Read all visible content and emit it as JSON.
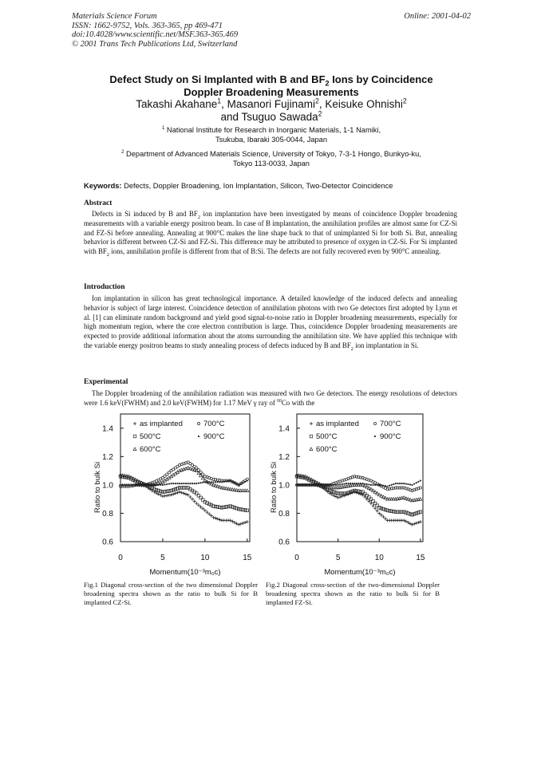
{
  "header": {
    "journal": "Materials Science Forum",
    "issn": "ISSN: 1662-9752, Vols. 363-365, pp 469-471",
    "doi": "doi:10.4028/www.scientific.net/MSF.363-365.469",
    "copyright": "© 2001 Trans Tech Publications Ltd, Switzerland",
    "online": "Online: 2001-04-02"
  },
  "title_line1": "Defect Study on Si Implanted with B and BF",
  "title_sub": "2",
  "title_line1_end": " Ions by Coincidence",
  "title_line2": "Doppler Broadening Measurements",
  "authors": {
    "a1": "Takashi Akahane",
    "a1_sup": "1",
    "a2": ", Masanori Fujinami",
    "a2_sup": "2",
    "a3": ", Keisuke Ohnishi",
    "a3_sup": "2",
    "a4": "and Tsuguo Sawada",
    "a4_sup": "2"
  },
  "affiliations": [
    {
      "sup": "1",
      "line1": " National Institute for Research in Inorganic Materials, 1-1 Namiki,",
      "line2": "Tsukuba, Ibaraki 305-0044, Japan"
    },
    {
      "sup": "2",
      "line1": " Department of Advanced Materials Science, University of Tokyo, 7-3-1 Hongo, Bunkyo-ku,",
      "line2": "Tokyo 113-0033, Japan"
    }
  ],
  "keywords_label": "Keywords:",
  "keywords": " Defects, Doppler Broadening, Ion Implantation, Silicon, Two-Detector Coincidence",
  "abstract": {
    "heading": "Abstract",
    "p1": "Defects in Si induced by B and BF",
    "p1_sub": "2",
    "p2": " ion implantation have been investigated by means of coincidence Doppler broadening measurements with a variable energy positron beam. In case of B implantation, the annihilation profiles are almost same for CZ-Si and FZ-Si before annealing. Annealing at 900°C makes the line shape back to that of unimplanted Si for both Si. But, annealing behavior is different between CZ-Si and FZ-Si. This difference may be attributed to presence of oxygen in CZ-Si. For Si implanted with BF",
    "p2_sub": "2",
    "p3": " ions, annihilation profile is different from that of B:Si. The defects are not fully recovered even by 900°C annealing."
  },
  "introduction": {
    "heading": "Introduction",
    "p1": "Ion implantation in silicon has great technological importance. A detailed knowledge of the induced defects and annealing behavior is subject of large interest. Coincidence detection of annihilation photons with two Ge detectors first adopted by Lynn et al. [1] can eliminate random background and yield good signal-to-noise ratio in Doppler broadening measurements, especially for high momentum region, where the core electron contribution is large. Thus, coincidence Doppler broadening measurements are expected to provide additional information about the atoms surrounding the annihilation site. We have applied this technique with the variable energy positron beams to study annealing process of defects induced by B and BF",
    "p1_sub": "2",
    "p2": " ion implantation in Si."
  },
  "experimental": {
    "heading": "Experimental",
    "p1": "The Doppler broadening of the annihilation radiation was measured with two Ge detectors. The energy resolutions of detectors were 1.6 keV(FWHM) and 2.0 keV(FWHM) for 1.17 MeV γ ray of ",
    "p1_sup": "60",
    "p2": "Co with the"
  },
  "captions": {
    "fig1": "Fig.1  Diagonal cross-section of the two dimensional Doppler broadening spectra shown as the ratio to bulk Si for B implanted CZ-Si.",
    "fig2": "Fig.2  Diagonal cross-section of the two-dimensional Doppler broadening spectra shown as the ratio to bulk Si for B implanted FZ-Si."
  },
  "chart_data": [
    {
      "type": "scatter",
      "xlabel": "Momentum(10⁻³m₀c)",
      "ylabel": "Ratio to bulk Si",
      "xlim": [
        0,
        15.3
      ],
      "ylim": [
        0.6,
        1.5
      ],
      "xticks": [
        "0",
        "5",
        "10",
        "15"
      ],
      "yticks": [
        "0.6",
        "0.8",
        "1.0",
        "1.2",
        "1.4"
      ],
      "grid": false,
      "legend_position": "top-left",
      "x": [
        0,
        1,
        2,
        3,
        4,
        5,
        6,
        7,
        8,
        9,
        10,
        11,
        12,
        13,
        14,
        15
      ],
      "series": [
        {
          "name": "as implanted",
          "marker": "plus",
          "values": [
            1.0,
            1.0,
            1.0,
            0.99,
            0.95,
            0.92,
            0.93,
            0.95,
            0.93,
            0.87,
            0.82,
            0.77,
            0.75,
            0.75,
            0.72,
            0.74
          ]
        },
        {
          "name": "500°C",
          "marker": "square",
          "values": [
            1.06,
            1.05,
            1.02,
            1.0,
            0.97,
            0.95,
            0.96,
            0.98,
            0.98,
            0.94,
            0.88,
            0.85,
            0.84,
            0.85,
            0.83,
            0.82
          ]
        },
        {
          "name": "600°C",
          "marker": "triangle",
          "values": [
            1.07,
            1.06,
            1.03,
            1.0,
            1.0,
            1.02,
            1.06,
            1.1,
            1.12,
            1.1,
            1.03,
            1.0,
            0.98,
            0.97,
            0.96,
            0.96
          ]
        },
        {
          "name": "700°C",
          "marker": "circle",
          "values": [
            0.99,
            0.99,
            1.0,
            1.0,
            1.02,
            1.05,
            1.1,
            1.14,
            1.16,
            1.12,
            1.06,
            1.04,
            1.03,
            1.03,
            1.0,
            1.04
          ]
        },
        {
          "name": "900°C",
          "marker": "dot",
          "values": [
            1.0,
            1.0,
            1.0,
            1.0,
            1.0,
            1.0,
            1.01,
            1.01,
            1.01,
            1.01,
            1.02,
            1.02,
            1.02,
            1.03,
            1.0,
            1.03
          ]
        }
      ]
    },
    {
      "type": "scatter",
      "xlabel": "Momentum(10⁻³m₀c)",
      "ylabel": "Ratio to bulk Si",
      "xlim": [
        0,
        15.3
      ],
      "ylim": [
        0.6,
        1.5
      ],
      "xticks": [
        "0",
        "5",
        "10",
        "15"
      ],
      "yticks": [
        "0.6",
        "0.8",
        "1.0",
        "1.2",
        "1.4"
      ],
      "grid": false,
      "legend_position": "top-left",
      "x": [
        0,
        1,
        2,
        3,
        4,
        5,
        6,
        7,
        8,
        9,
        10,
        11,
        12,
        13,
        14,
        15
      ],
      "series": [
        {
          "name": "as implanted",
          "marker": "plus",
          "values": [
            1.0,
            1.0,
            1.0,
            0.99,
            0.94,
            0.91,
            0.93,
            0.95,
            0.93,
            0.87,
            0.8,
            0.75,
            0.75,
            0.75,
            0.72,
            0.74
          ]
        },
        {
          "name": "500°C",
          "marker": "square",
          "values": [
            1.06,
            1.05,
            1.02,
            0.99,
            0.96,
            0.94,
            0.94,
            0.96,
            0.95,
            0.9,
            0.84,
            0.82,
            0.81,
            0.81,
            0.79,
            0.81
          ]
        },
        {
          "name": "600°C",
          "marker": "triangle",
          "values": [
            1.07,
            1.06,
            1.03,
            1.0,
            0.98,
            0.98,
            0.99,
            1.0,
            1.0,
            0.97,
            0.93,
            0.9,
            0.9,
            0.91,
            0.89,
            0.9
          ]
        },
        {
          "name": "700°C",
          "marker": "circle",
          "values": [
            1.0,
            1.0,
            1.0,
            1.0,
            1.0,
            1.02,
            1.04,
            1.06,
            1.05,
            1.03,
            1.0,
            0.97,
            0.98,
            0.98,
            0.96,
            0.98
          ]
        },
        {
          "name": "900°C",
          "marker": "dot",
          "values": [
            1.0,
            1.0,
            1.0,
            1.0,
            1.0,
            1.0,
            1.01,
            1.01,
            1.01,
            1.0,
            1.0,
            0.99,
            1.01,
            1.01,
            1.0,
            1.03
          ]
        }
      ]
    }
  ]
}
